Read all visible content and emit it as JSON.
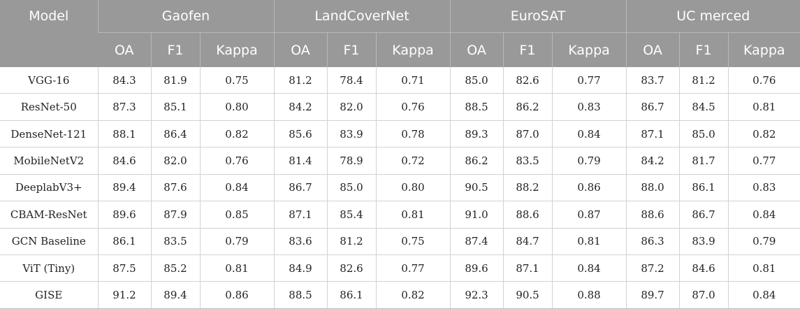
{
  "header": {
    "model_label": "Model",
    "datasets": [
      "Gaofen",
      "LandCoverNet",
      "EuroSAT",
      "UC merced"
    ],
    "metrics": [
      "OA",
      "F1",
      "Kappa"
    ]
  },
  "rows": [
    {
      "model": "VGG-16",
      "values": [
        "84.3",
        "81.9",
        "0.75",
        "81.2",
        "78.4",
        "0.71",
        "85.0",
        "82.6",
        "0.77",
        "83.7",
        "81.2",
        "0.76"
      ]
    },
    {
      "model": "ResNet-50",
      "values": [
        "87.3",
        "85.1",
        "0.80",
        "84.2",
        "82.0",
        "0.76",
        "88.5",
        "86.2",
        "0.83",
        "86.7",
        "84.5",
        "0.81"
      ]
    },
    {
      "model": "DenseNet-121",
      "values": [
        "88.1",
        "86.4",
        "0.82",
        "85.6",
        "83.9",
        "0.78",
        "89.3",
        "87.0",
        "0.84",
        "87.1",
        "85.0",
        "0.82"
      ]
    },
    {
      "model": "MobileNetV2",
      "values": [
        "84.6",
        "82.0",
        "0.76",
        "81.4",
        "78.9",
        "0.72",
        "86.2",
        "83.5",
        "0.79",
        "84.2",
        "81.7",
        "0.77"
      ]
    },
    {
      "model": "DeeplabV3+",
      "values": [
        "89.4",
        "87.6",
        "0.84",
        "86.7",
        "85.0",
        "0.80",
        "90.5",
        "88.2",
        "0.86",
        "88.0",
        "86.1",
        "0.83"
      ]
    },
    {
      "model": "CBAM-ResNet",
      "values": [
        "89.6",
        "87.9",
        "0.85",
        "87.1",
        "85.4",
        "0.81",
        "91.0",
        "88.6",
        "0.87",
        "88.6",
        "86.7",
        "0.84"
      ]
    },
    {
      "model": "GCN Baseline",
      "values": [
        "86.1",
        "83.5",
        "0.79",
        "83.6",
        "81.2",
        "0.75",
        "87.4",
        "84.7",
        "0.81",
        "86.3",
        "83.9",
        "0.79"
      ]
    },
    {
      "model": "ViT (Tiny)",
      "values": [
        "87.5",
        "85.2",
        "0.81",
        "84.9",
        "82.6",
        "0.77",
        "89.6",
        "87.1",
        "0.84",
        "87.2",
        "84.6",
        "0.81"
      ]
    },
    {
      "model": "GISE",
      "values": [
        "91.2",
        "89.4",
        "0.86",
        "88.5",
        "86.1",
        "0.82",
        "92.3",
        "90.5",
        "0.88",
        "89.7",
        "87.0",
        "0.84"
      ]
    }
  ]
}
